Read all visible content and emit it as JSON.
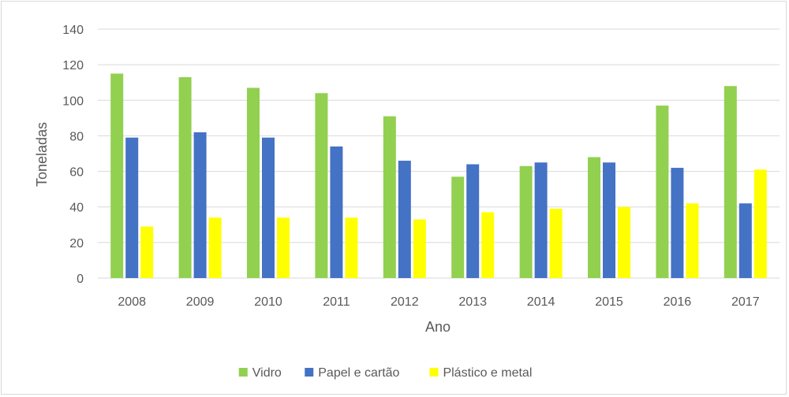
{
  "chart_data": {
    "type": "bar",
    "categories": [
      "2008",
      "2009",
      "2010",
      "2011",
      "2012",
      "2013",
      "2014",
      "2015",
      "2016",
      "2017"
    ],
    "series": [
      {
        "name": "Vidro",
        "color": "#92d050",
        "values": [
          115,
          113,
          107,
          104,
          91,
          57,
          63,
          68,
          97,
          108
        ]
      },
      {
        "name": "Papel e cartão",
        "color": "#4472c4",
        "values": [
          79,
          82,
          79,
          74,
          66,
          64,
          65,
          65,
          62,
          42
        ]
      },
      {
        "name": "Plástico e metal",
        "color": "#ffff00",
        "values": [
          29,
          34,
          34,
          34,
          33,
          37,
          39,
          40,
          42,
          61
        ]
      }
    ],
    "title": "",
    "xlabel": "Ano",
    "ylabel": "Toneladas",
    "ylim": [
      0,
      140
    ],
    "yticks": [
      0,
      20,
      40,
      60,
      80,
      100,
      120,
      140
    ],
    "grid": true,
    "legend_position": "bottom",
    "gridline_color": "#d9d9d9"
  }
}
